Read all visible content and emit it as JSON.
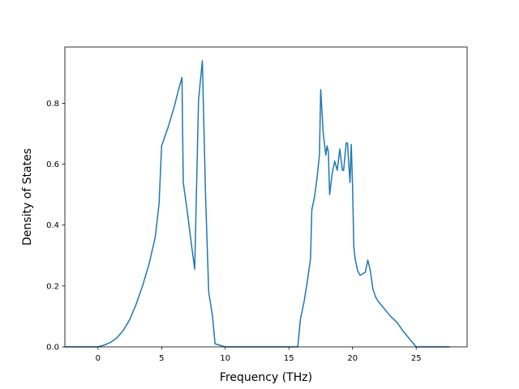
{
  "chart_data": {
    "type": "line",
    "title": "",
    "xlabel": "Frequency (THz)",
    "ylabel": "Density of States",
    "xlim": [
      -2.6,
      29.0
    ],
    "ylim": [
      0.0,
      0.985
    ],
    "xticks": [
      0,
      5,
      10,
      15,
      20,
      25
    ],
    "yticks": [
      0.0,
      0.2,
      0.4,
      0.6,
      0.8
    ],
    "xtick_labels": [
      "0",
      "5",
      "10",
      "15",
      "20",
      "25"
    ],
    "ytick_labels": [
      "0.0",
      "0.2",
      "0.4",
      "0.6",
      "0.8"
    ],
    "grid": false,
    "legend": "none",
    "line_color": "#1f77b4",
    "series": [
      {
        "x": [
          -2.6,
          -1.0,
          0.0,
          0.5,
          1.0,
          1.5,
          2.0,
          2.5,
          3.0,
          3.5,
          4.0,
          4.5,
          4.8,
          5.0,
          5.5,
          6.0,
          6.3,
          6.6,
          6.7,
          7.0,
          7.3,
          7.6,
          7.9,
          8.2,
          8.45,
          8.7,
          9.0,
          9.2,
          10.0,
          15.0,
          15.7,
          15.9,
          16.2,
          16.5,
          16.7,
          16.8,
          17.0,
          17.2,
          17.4,
          17.5,
          17.7,
          17.9,
          18.0,
          18.1,
          18.2,
          18.4,
          18.6,
          18.8,
          19.0,
          19.2,
          19.3,
          19.5,
          19.6,
          19.8,
          19.9,
          20.0,
          20.1,
          20.2,
          20.4,
          20.6,
          20.8,
          21.0,
          21.2,
          21.4,
          21.6,
          21.8,
          22.0,
          22.3,
          22.6,
          23.0,
          23.5,
          24.0,
          24.5,
          24.8,
          25.0,
          25.2,
          27.6
        ],
        "y": [
          0.0,
          0.0,
          0.0,
          0.006,
          0.015,
          0.03,
          0.055,
          0.09,
          0.14,
          0.2,
          0.27,
          0.36,
          0.47,
          0.66,
          0.72,
          0.79,
          0.84,
          0.885,
          0.54,
          0.45,
          0.35,
          0.255,
          0.81,
          0.94,
          0.5,
          0.18,
          0.1,
          0.01,
          0.0,
          0.0,
          0.0,
          0.09,
          0.15,
          0.23,
          0.29,
          0.45,
          0.49,
          0.55,
          0.63,
          0.845,
          0.7,
          0.63,
          0.66,
          0.64,
          0.5,
          0.57,
          0.61,
          0.58,
          0.65,
          0.58,
          0.58,
          0.67,
          0.67,
          0.54,
          0.665,
          0.53,
          0.33,
          0.29,
          0.25,
          0.235,
          0.24,
          0.245,
          0.285,
          0.25,
          0.19,
          0.165,
          0.15,
          0.135,
          0.12,
          0.1,
          0.08,
          0.05,
          0.025,
          0.01,
          0.0,
          0.0,
          0.0
        ]
      }
    ]
  }
}
